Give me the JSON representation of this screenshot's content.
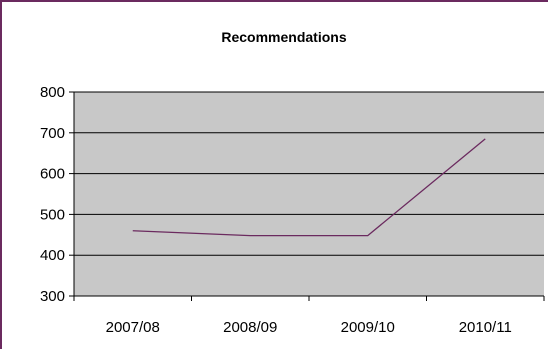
{
  "colors": {
    "frame_border": "#6b2a5f",
    "plot_background": "#c8c8c8",
    "gridline": "#000000",
    "series_line": "#6b2a5f"
  },
  "chart_data": {
    "type": "line",
    "title": "Recommendations",
    "xlabel": "",
    "ylabel": "",
    "categories": [
      "2007/08",
      "2008/09",
      "2009/10",
      "2010/11"
    ],
    "series": [
      {
        "values": [
          460,
          448,
          448,
          685
        ]
      }
    ],
    "ylim": [
      300,
      800
    ],
    "yticks": [
      300,
      400,
      500,
      600,
      700,
      800
    ],
    "grid": true,
    "legend": "none"
  }
}
